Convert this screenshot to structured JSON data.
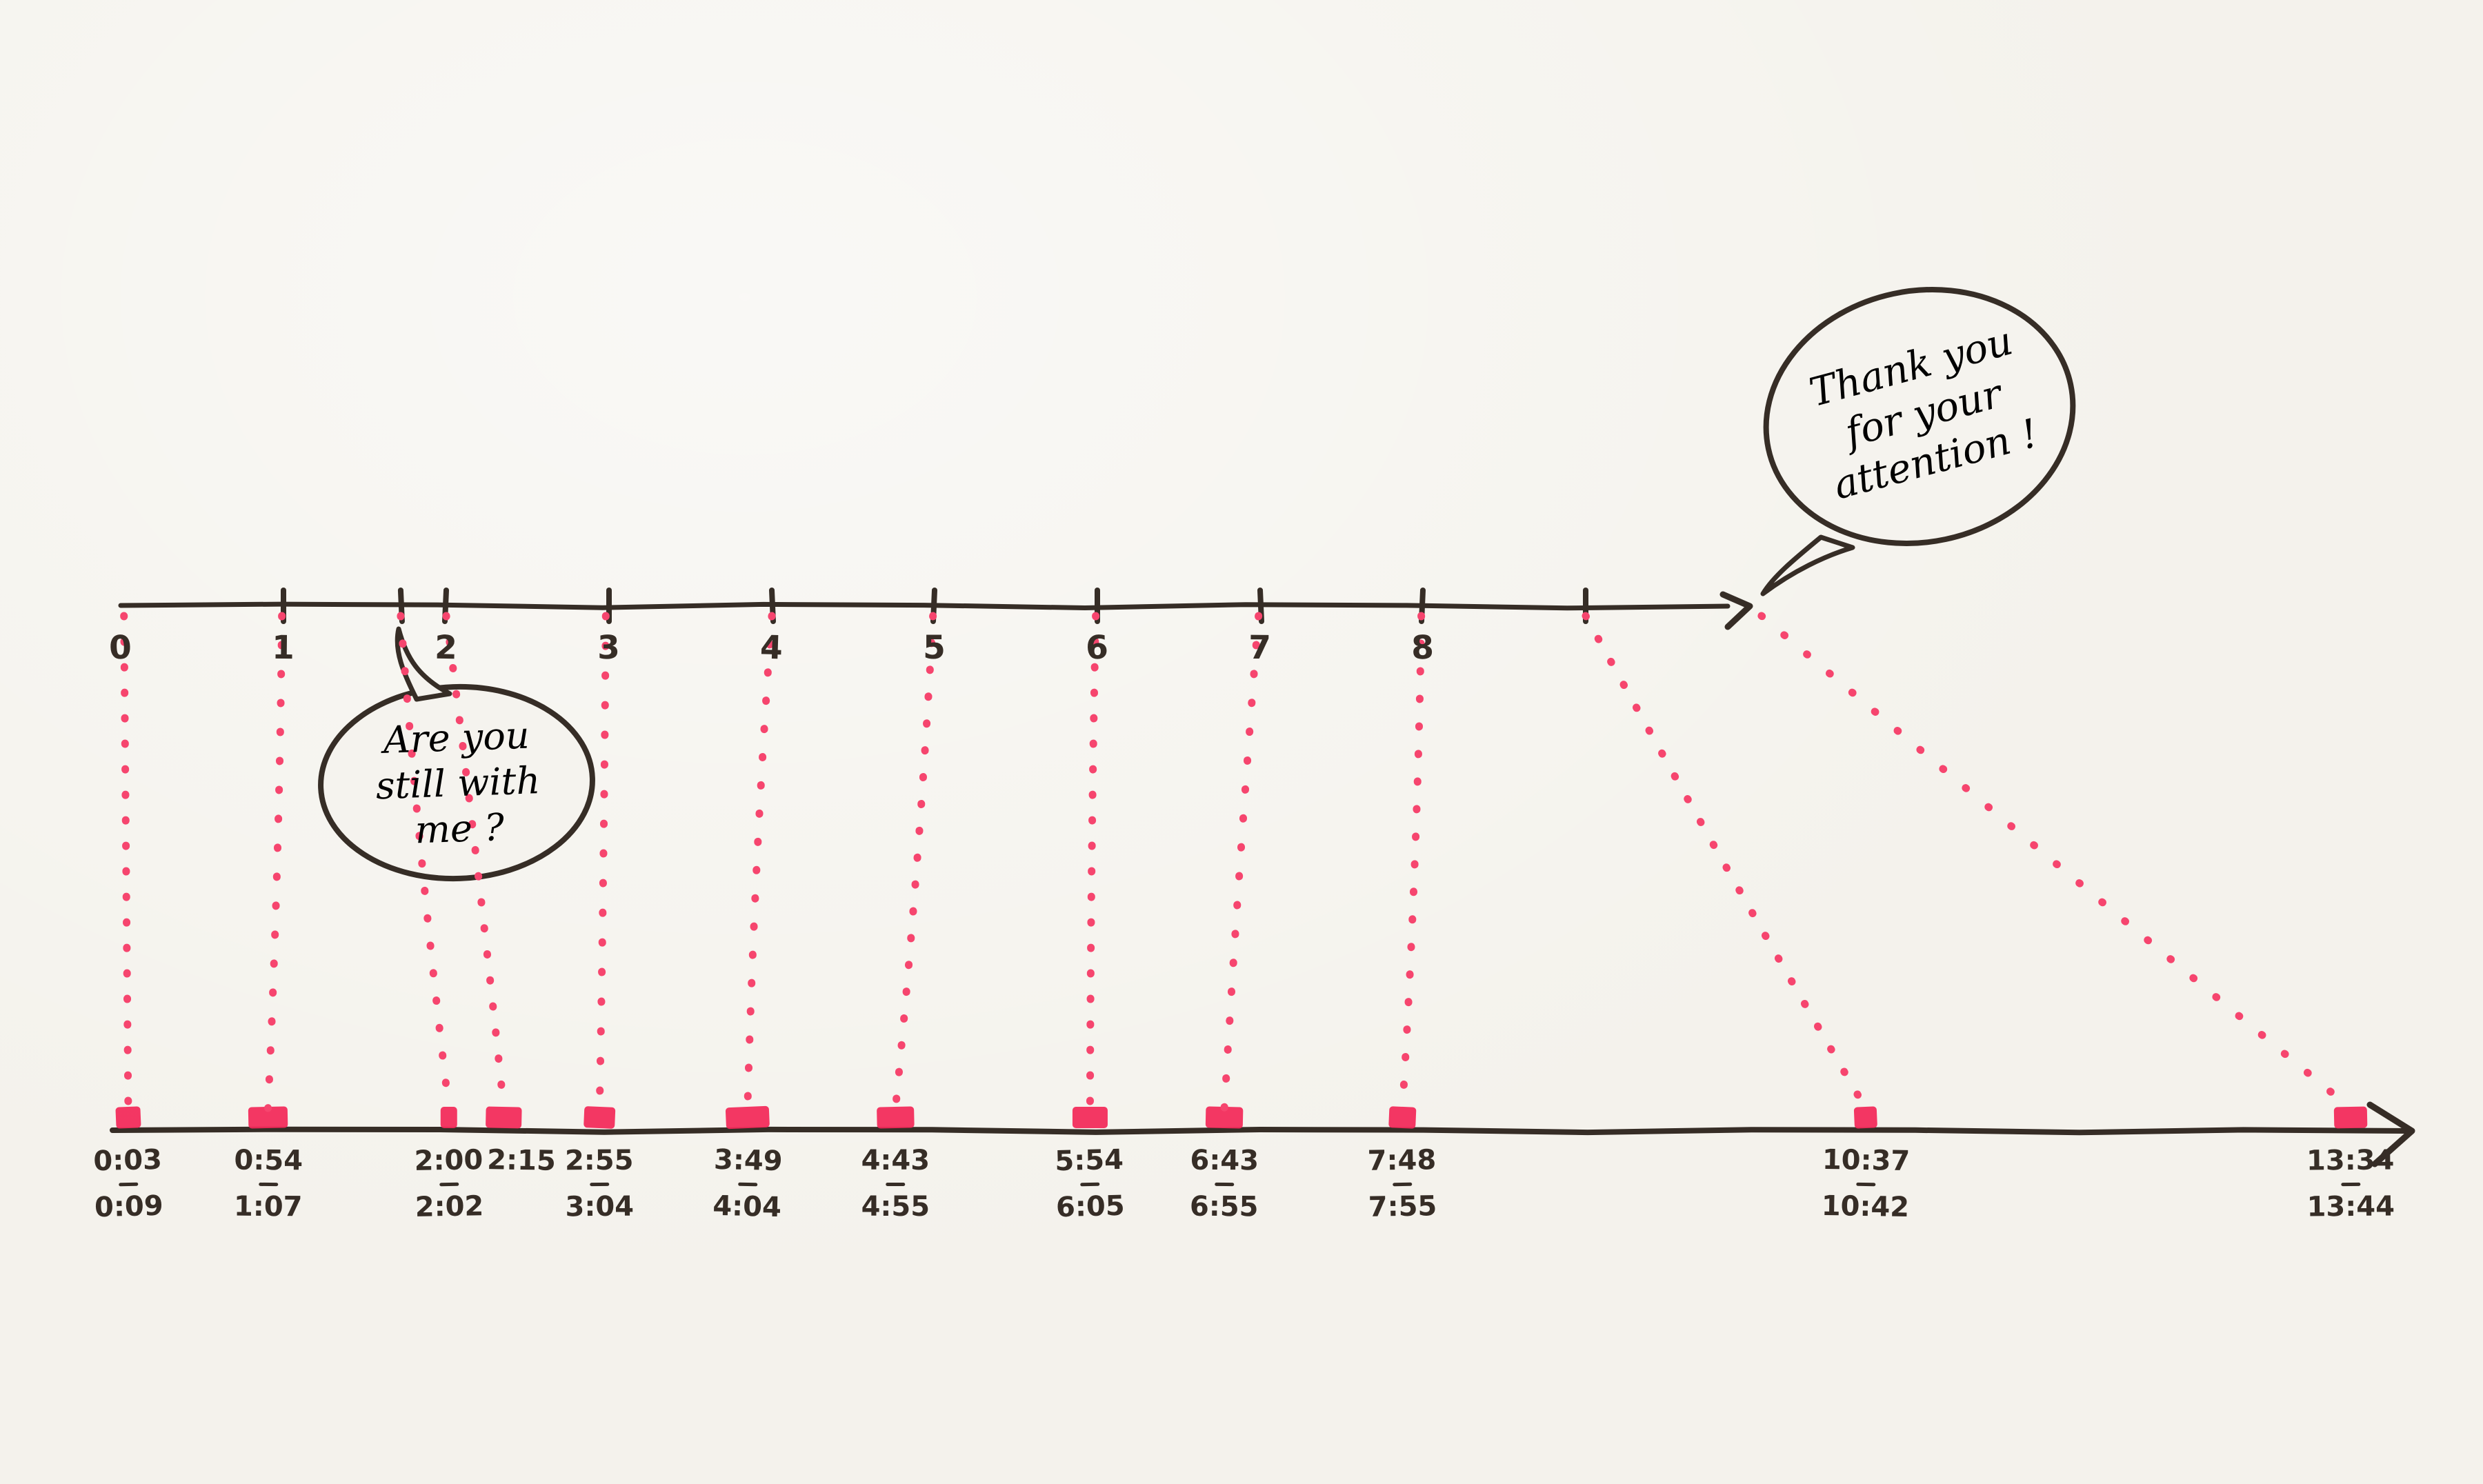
{
  "colors": {
    "paper": "#f5f3ee",
    "ink": "#362d26",
    "dot_pink": "#f6456e",
    "blob_pink": "#f22858"
  },
  "top_axis": {
    "tick_labels": [
      {
        "minute": 0,
        "label": "0",
        "has_tick": false
      },
      {
        "minute": 1,
        "label": "1"
      },
      {
        "minute": 1.72,
        "label": ""
      },
      {
        "minute": 2,
        "label": "2"
      },
      {
        "minute": 3,
        "label": "3"
      },
      {
        "minute": 4,
        "label": "4"
      },
      {
        "minute": 5,
        "label": "5"
      },
      {
        "minute": 6,
        "label": "6"
      },
      {
        "minute": 7,
        "label": "7"
      },
      {
        "minute": 8,
        "label": "8"
      },
      {
        "minute": 9,
        "label": ""
      }
    ]
  },
  "laughs": [
    {
      "script_minute": 0.02,
      "start": "0:03",
      "end": "0:09"
    },
    {
      "script_minute": 0.99,
      "start": "0:54",
      "end": "1:07"
    },
    {
      "script_minute": 1.72,
      "start": "2:00",
      "end": "2:02"
    },
    {
      "script_minute": 2.0,
      "start": "2:15",
      "end": null
    },
    {
      "script_minute": 2.98,
      "start": "2:55",
      "end": "3:04"
    },
    {
      "script_minute": 4.0,
      "start": "3:49",
      "end": "4:04"
    },
    {
      "script_minute": 4.99,
      "start": "4:43",
      "end": "4:55"
    },
    {
      "script_minute": 5.99,
      "start": "5:54",
      "end": "6:05"
    },
    {
      "script_minute": 6.99,
      "start": "6:43",
      "end": "6:55"
    },
    {
      "script_minute": 7.99,
      "start": "7:48",
      "end": "7:55"
    },
    {
      "script_minute": 9.0,
      "start": "10:37",
      "end": "10:42"
    },
    {
      "script_minute": 10.08,
      "start": "13:34",
      "end": "13:44"
    }
  ],
  "bubbles": {
    "question": {
      "lines": [
        "Are you",
        "still with",
        "me ?"
      ]
    },
    "thanks": {
      "lines": [
        "Thank you",
        "for your",
        "attention !"
      ]
    }
  }
}
